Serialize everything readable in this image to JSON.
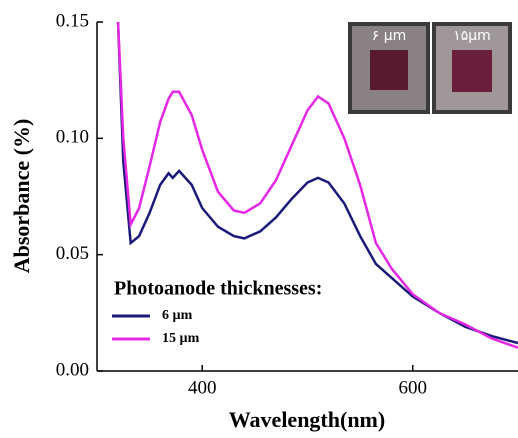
{
  "chart_data": {
    "type": "line",
    "x_label": "Wavelength(nm)",
    "y_label": "Absorbance (%)",
    "legend_title": "Photoanode thicknesses:",
    "legend": "lower left",
    "annotations": [
      "۶ µm",
      "۱۵µm"
    ],
    "x": [
      320,
      325,
      332,
      340,
      350,
      360,
      368,
      372,
      378,
      390,
      400,
      415,
      430,
      440,
      455,
      470,
      485,
      500,
      510,
      520,
      535,
      550,
      565,
      580,
      600,
      625,
      650,
      675,
      700
    ],
    "series": [
      {
        "name": "6 µm",
        "color": "#1a1a7a",
        "values": [
          0.15,
          0.09,
          0.055,
          0.058,
          0.068,
          0.08,
          0.085,
          0.083,
          0.086,
          0.08,
          0.07,
          0.062,
          0.058,
          0.057,
          0.06,
          0.066,
          0.074,
          0.081,
          0.083,
          0.081,
          0.072,
          0.058,
          0.046,
          0.04,
          0.032,
          0.025,
          0.019,
          0.015,
          0.012
        ]
      },
      {
        "name": "15 µm",
        "color": "#e628e6",
        "values": [
          0.15,
          0.1,
          0.063,
          0.07,
          0.088,
          0.107,
          0.117,
          0.12,
          0.12,
          0.11,
          0.095,
          0.077,
          0.069,
          0.068,
          0.072,
          0.082,
          0.097,
          0.112,
          0.118,
          0.115,
          0.1,
          0.08,
          0.055,
          0.044,
          0.033,
          0.025,
          0.02,
          0.014,
          0.01
        ]
      }
    ],
    "xlim": [
      300,
      700
    ],
    "ylim": [
      0,
      0.15
    ],
    "xticks": [
      400,
      600
    ],
    "yticks": [
      {
        "value": 0,
        "label": "0.00"
      },
      {
        "value": 0.05,
        "label": "0.05"
      },
      {
        "value": 0.1,
        "label": "0.10"
      },
      {
        "value": 0.15,
        "label": "0.15"
      }
    ]
  }
}
